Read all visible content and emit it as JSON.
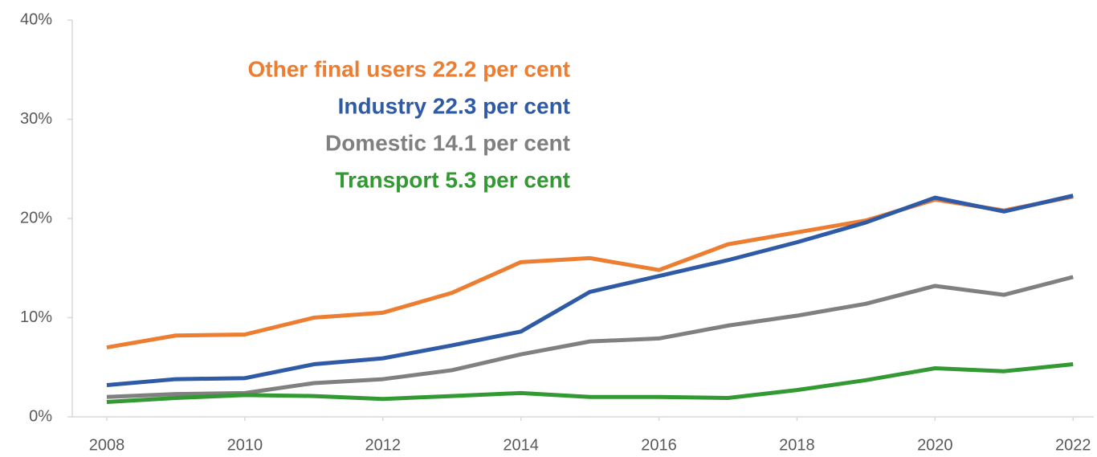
{
  "chart_data": {
    "type": "line",
    "x": [
      2008,
      2009,
      2010,
      2011,
      2012,
      2013,
      2014,
      2015,
      2016,
      2017,
      2018,
      2019,
      2020,
      2021,
      2022
    ],
    "series": [
      {
        "name": "Other final users 22.2 per cent",
        "color": "#ed7d31",
        "values": [
          7.0,
          8.2,
          8.3,
          10.0,
          10.5,
          12.5,
          15.6,
          16.0,
          14.8,
          17.4,
          18.6,
          19.8,
          21.9,
          20.8,
          22.2
        ]
      },
      {
        "name": "Industry 22.3 per cent",
        "color": "#2f5aa6",
        "values": [
          3.2,
          3.8,
          3.9,
          5.3,
          5.9,
          7.2,
          8.6,
          12.6,
          14.2,
          15.8,
          17.6,
          19.6,
          22.1,
          20.7,
          22.3
        ]
      },
      {
        "name": "Domestic 14.1 per cent",
        "color": "#808080",
        "values": [
          2.0,
          2.3,
          2.4,
          3.4,
          3.8,
          4.7,
          6.3,
          7.6,
          7.9,
          9.2,
          10.2,
          11.4,
          13.2,
          12.3,
          14.1
        ]
      },
      {
        "name": "Transport 5.3 per cent",
        "color": "#339933",
        "values": [
          1.5,
          1.9,
          2.2,
          2.1,
          1.8,
          2.1,
          2.4,
          2.0,
          2.0,
          1.9,
          2.7,
          3.7,
          4.9,
          4.6,
          5.3
        ]
      }
    ],
    "xlim": [
      2007.5,
      2022.3
    ],
    "xticks": [
      2008,
      2010,
      2012,
      2014,
      2016,
      2018,
      2020,
      2022
    ],
    "ylim": [
      0,
      40
    ],
    "yticks": [
      {
        "value": 0,
        "label": "0%"
      },
      {
        "value": 10,
        "label": "10%"
      },
      {
        "value": 20,
        "label": "20%"
      },
      {
        "value": 30,
        "label": "30%"
      },
      {
        "value": 40,
        "label": "40%"
      }
    ],
    "grid": false
  }
}
